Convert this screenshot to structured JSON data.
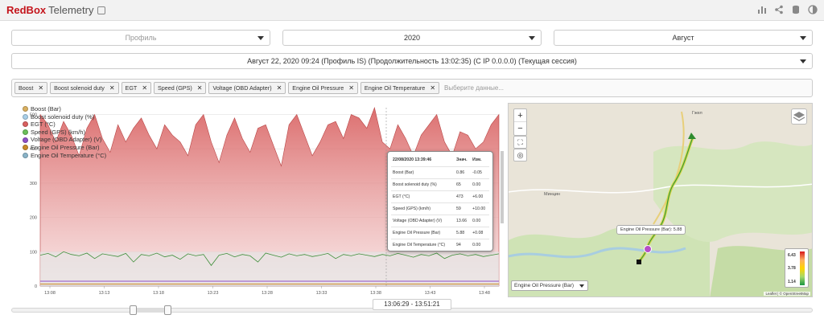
{
  "header": {
    "brand_red": "RedBox",
    "brand_rest": "Telemetry"
  },
  "filters": {
    "profile_placeholder": "Профиль",
    "year": "2020",
    "month": "Август",
    "session": "Август 22, 2020 09:24 (Профиль IS) (Продолжительность 13:02:35) (С IP 0.0.0.0) (Текущая сессия)"
  },
  "tags": {
    "items": [
      "Boost",
      "Boost solenoid duty",
      "EGT",
      "Speed (GPS)",
      "Voltage (OBD Adapter)",
      "Engine Oil Pressure",
      "Engine Oil Temperature"
    ],
    "placeholder": "Выберите данные..."
  },
  "legend": [
    {
      "label": "Boost (Bar)",
      "color": "#d9b060"
    },
    {
      "label": "Boost solenoid duty (%)",
      "color": "#a9cfe8"
    },
    {
      "label": "EGT (°C)",
      "color": "#d96060"
    },
    {
      "label": "Speed (GPS) (km/h)",
      "color": "#6bbf5a"
    },
    {
      "label": "Voltage (OBD Adapter) (V)",
      "color": "#8f4fc7"
    },
    {
      "label": "Engine Oil Pressure (Bar)",
      "color": "#c98a2a"
    },
    {
      "label": "Engine Oil Temperature (°C)",
      "color": "#8ab4c8"
    }
  ],
  "chart_data": {
    "type": "area",
    "x_ticks": [
      "13:08",
      "13:13",
      "13:18",
      "13:23",
      "13:28",
      "13:33",
      "13:38",
      "13:43",
      "13:48"
    ],
    "y_ticks": [
      0,
      100,
      200,
      300,
      400,
      500
    ],
    "ylim": [
      0,
      520
    ],
    "series": [
      {
        "name": "EGT (°C)",
        "values": [
          500,
          470,
          420,
          480,
          440,
          380,
          460,
          500,
          430,
          390,
          470,
          420,
          460,
          490,
          440,
          400,
          470,
          440,
          420,
          380,
          470,
          500,
          420,
          360,
          440,
          490,
          430,
          390,
          460,
          470,
          410,
          350,
          470,
          500,
          440,
          380,
          420,
          470,
          480,
          430,
          500,
          490,
          460,
          520,
          420,
          400,
          470,
          430,
          380,
          440,
          470,
          500,
          420,
          380,
          450,
          440,
          400,
          420,
          470,
          500
        ]
      },
      {
        "name": "Speed (GPS) (km/h)",
        "values": [
          90,
          95,
          85,
          100,
          92,
          88,
          96,
          80,
          94,
          90,
          86,
          95,
          70,
          92,
          88,
          96,
          85,
          90,
          78,
          94,
          88,
          92,
          60,
          90,
          95,
          85,
          92,
          88,
          70,
          96,
          90,
          84,
          94,
          88,
          92,
          86,
          90,
          95,
          80,
          92,
          88,
          94,
          90,
          86,
          92,
          88,
          95,
          90,
          84,
          92,
          88,
          96,
          80,
          90,
          94,
          88,
          92,
          86,
          90,
          94
        ]
      }
    ]
  },
  "tooltip": {
    "timestamp": "22/08/2020 13:39:46",
    "col_value": "Знач.",
    "col_change": "Изм.",
    "rows": [
      {
        "name": "Boost (Bar)",
        "value": "0.86",
        "change": "-0.05"
      },
      {
        "name": "Boost solenoid duty (%)",
        "value": "65",
        "change": "0.00"
      },
      {
        "name": "EGT (°C)",
        "value": "473",
        "change": "+6.00"
      },
      {
        "name": "Speed (GPS) (km/h)",
        "value": "59",
        "change": "+10.00"
      },
      {
        "name": "Voltage (OBD Adapter) (V)",
        "value": "13.66",
        "change": "0.00"
      },
      {
        "name": "Engine Oil Pressure (Bar)",
        "value": "5.88",
        "change": "+0.08"
      },
      {
        "name": "Engine Oil Temperature (°C)",
        "value": "94",
        "change": "0.00"
      }
    ]
  },
  "map": {
    "place_1": "Гжел",
    "place_2": "Минцин",
    "tip": "Engine Oil Pressure (Bar): 5.88",
    "layer_select": "Engine Oil Pressure (Bar)",
    "scale_high": "6.43",
    "scale_mid": "3.78",
    "scale_low": "1.14",
    "attribution": "Leaflet | © OpenStreetMap"
  },
  "range": {
    "label": "13:06:29 - 13:51:21"
  }
}
